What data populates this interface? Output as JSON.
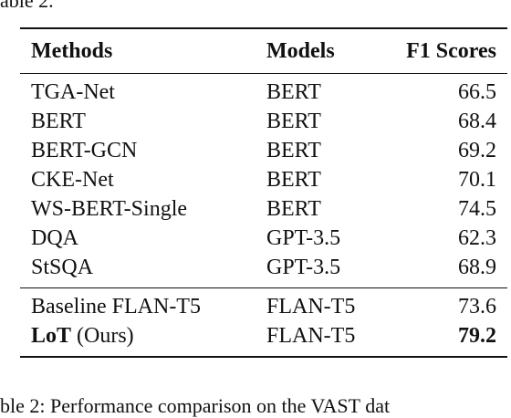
{
  "top_fragment": "able 2.",
  "table": {
    "headers": [
      "Methods",
      "Models",
      "F1 Scores"
    ],
    "group1": [
      {
        "method": "TGA-Net",
        "model": "BERT",
        "score": "66.5"
      },
      {
        "method": "BERT",
        "model": "BERT",
        "score": "68.4"
      },
      {
        "method": "BERT-GCN",
        "model": "BERT",
        "score": "69.2"
      },
      {
        "method": "CKE-Net",
        "model": "BERT",
        "score": "70.1"
      },
      {
        "method": "WS-BERT-Single",
        "model": "BERT",
        "score": "74.5"
      },
      {
        "method": "DQA",
        "model": "GPT-3.5",
        "score": "62.3"
      },
      {
        "method": "StSQA",
        "model": "GPT-3.5",
        "score": "68.9"
      }
    ],
    "group2": [
      {
        "method": "Baseline FLAN-T5",
        "model": "FLAN-T5",
        "score": "73.6"
      },
      {
        "method_bold": "LoT",
        "method_suffix": " (Ours)",
        "model": "FLAN-T5",
        "score": "79.2"
      }
    ]
  },
  "caption_fragment": "ble 2: Performance comparison on the VAST dat"
}
